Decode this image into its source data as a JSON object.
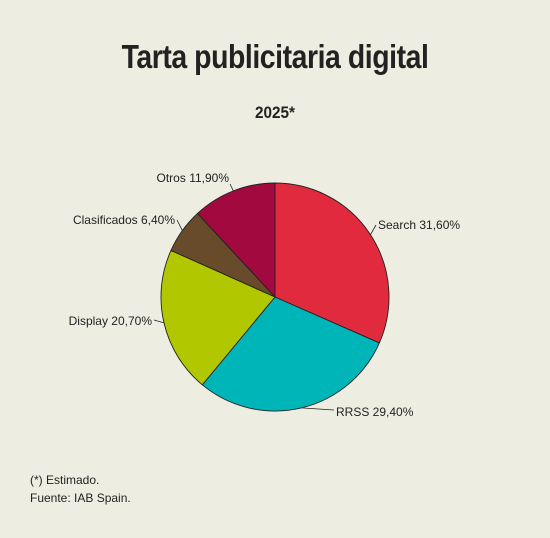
{
  "header": {
    "title": "Tarta publicitaria digital",
    "subtitle": "2025*"
  },
  "footer": {
    "note": "(*) Estimado.",
    "source": "Fuente: IAB Spain."
  },
  "chart_data": {
    "type": "pie",
    "title": "Tarta publicitaria digital",
    "subtitle": "2025*",
    "slices": [
      {
        "name": "Search",
        "value": 31.6,
        "label": "Search 31,60%",
        "color": "#e12a3d"
      },
      {
        "name": "RRSS",
        "value": 29.4,
        "label": "RRSS 29,40%",
        "color": "#00b5b8"
      },
      {
        "name": "Display",
        "value": 20.7,
        "label": "Display 20,70%",
        "color": "#b1c800"
      },
      {
        "name": "Clasificados",
        "value": 6.4,
        "label": "Clasificados 6,40%",
        "color": "#674b2a"
      },
      {
        "name": "Otros",
        "value": 11.9,
        "label": "Otros 11,90%",
        "color": "#a2093f"
      }
    ],
    "start_angle": "top",
    "direction": "clockwise"
  }
}
